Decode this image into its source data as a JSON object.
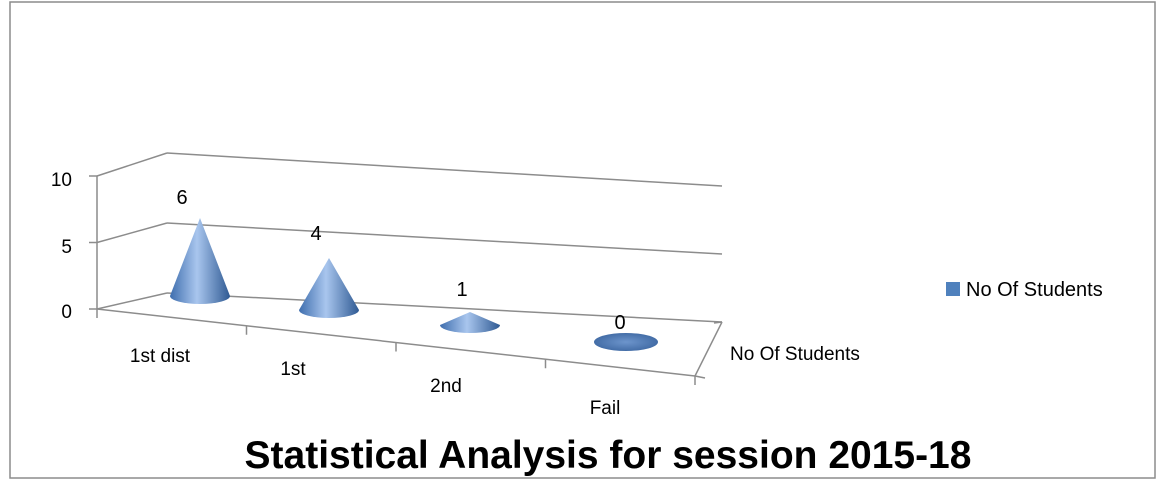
{
  "chart_data": {
    "type": "bar",
    "style": "3d-cone",
    "title": "Statistical Analysis for session 2015-18",
    "categories": [
      "1st dist",
      "1st",
      "2nd",
      "Fail"
    ],
    "series": [
      {
        "name": "No Of Students",
        "values": [
          6,
          4,
          1,
          0
        ]
      }
    ],
    "data_labels": [
      "6",
      "4",
      "1",
      "0"
    ],
    "y_ticks": [
      "0",
      "5",
      "10"
    ],
    "depth_axis_label": "No Of Students",
    "ylim": [
      0,
      10
    ],
    "grid": true,
    "legend": {
      "position": "right",
      "entries": [
        "No Of Students"
      ]
    },
    "colors": {
      "series": "#4f81bd",
      "series_light": "#a9c6ee",
      "series_dark": "#2f5a93",
      "axis": "#8c8c8c",
      "border": "#8c8c8c"
    }
  }
}
